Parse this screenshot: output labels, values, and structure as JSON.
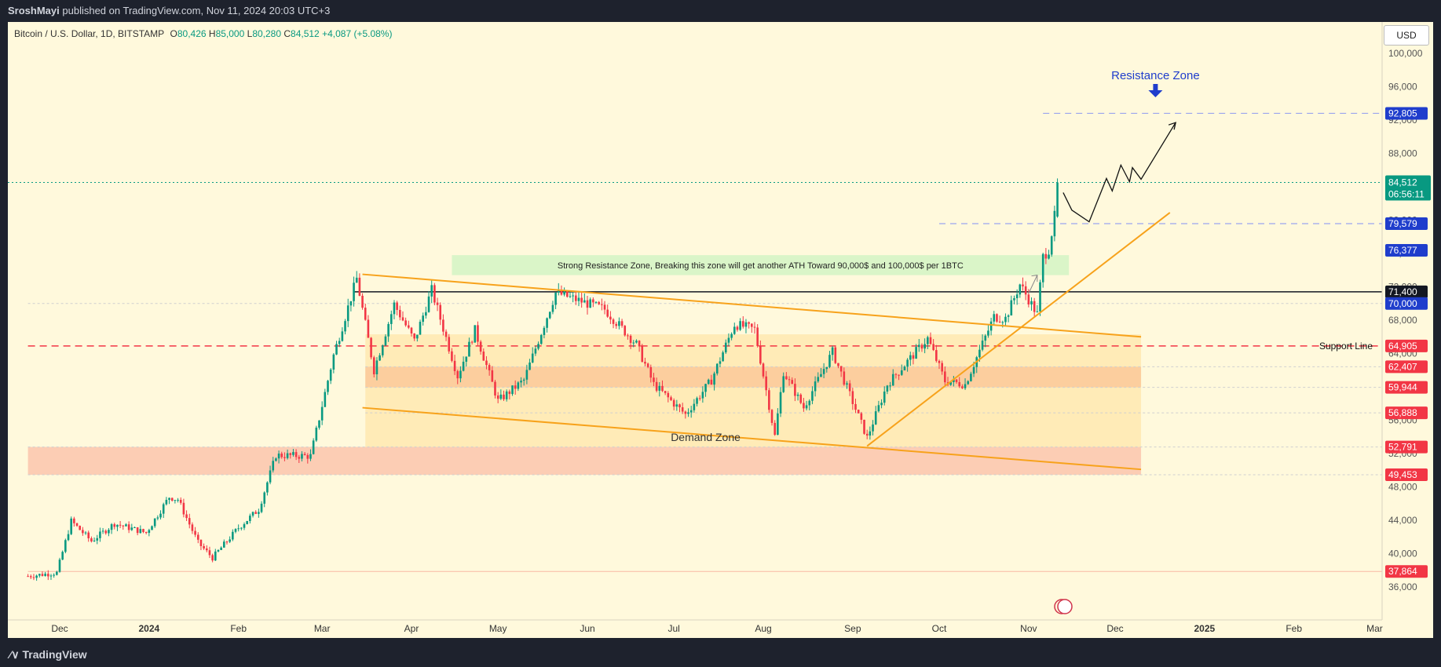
{
  "header": {
    "author": "SroshMayi",
    "published": "published on TradingView.com, Nov 11, 2024 20:03 UTC+3"
  },
  "legend": {
    "pair": "Bitcoin / U.S. Dollar, 1D, BITSTAMP",
    "open_label": "O",
    "open": "80,426",
    "high_label": "H",
    "high": "85,000",
    "low_label": "L",
    "low": "80,280",
    "close_label": "C",
    "close": "84,512",
    "change": "+4,087 (+5.08%)"
  },
  "currency_button": "USD",
  "footer": {
    "brand": "TradingView"
  },
  "colors": {
    "background": "#fff9dc",
    "up": "#089981",
    "down": "#f23645",
    "channel": "#f7a21b",
    "resistance_box": "#d4f5c4",
    "blue": "#1f3dcc"
  },
  "chart_data": {
    "type": "candlestick",
    "symbol": "Bitcoin / U.S. Dollar",
    "timeframe": "1D",
    "exchange": "BITSTAMP",
    "ylim": [
      34000,
      104000
    ],
    "y_ticks": [
      36000,
      40000,
      44000,
      48000,
      52000,
      56000,
      60000,
      64000,
      68000,
      72000,
      76000,
      80000,
      84000,
      88000,
      92000,
      96000,
      100000
    ],
    "y_tick_labels": [
      "36,000",
      "40,000",
      "44,000",
      "48,000",
      "52,000",
      "56,000",
      "60,000",
      "64,000",
      "68,000",
      "72,000",
      "76,000",
      "80,000",
      "84,000",
      "88,000",
      "92,000",
      "96,000",
      "100,000"
    ],
    "x_range": [
      "2023-11-20",
      "2025-03-10"
    ],
    "x_ticks": [
      {
        "date": "2023-12-01",
        "label": "Dec"
      },
      {
        "date": "2024-01-01",
        "label": "2024"
      },
      {
        "date": "2024-02-01",
        "label": "Feb"
      },
      {
        "date": "2024-03-01",
        "label": "Mar"
      },
      {
        "date": "2024-04-01",
        "label": "Apr"
      },
      {
        "date": "2024-05-01",
        "label": "May"
      },
      {
        "date": "2024-06-01",
        "label": "Jun"
      },
      {
        "date": "2024-07-01",
        "label": "Jul"
      },
      {
        "date": "2024-08-01",
        "label": "Aug"
      },
      {
        "date": "2024-09-01",
        "label": "Sep"
      },
      {
        "date": "2024-10-01",
        "label": "Oct"
      },
      {
        "date": "2024-11-01",
        "label": "Nov"
      },
      {
        "date": "2024-12-01",
        "label": "Dec"
      },
      {
        "date": "2025-01-01",
        "label": "2025"
      },
      {
        "date": "2025-02-01",
        "label": "Feb"
      },
      {
        "date": "2025-03-01",
        "label": "Mar"
      }
    ],
    "price_path": [
      [
        "2023-11-20",
        37300
      ],
      [
        "2023-11-30",
        37700
      ],
      [
        "2023-12-05",
        43900
      ],
      [
        "2023-12-12",
        41500
      ],
      [
        "2023-12-20",
        43600
      ],
      [
        "2023-12-31",
        42500
      ],
      [
        "2024-01-08",
        46800
      ],
      [
        "2024-01-11",
        46500
      ],
      [
        "2024-01-18",
        41300
      ],
      [
        "2024-01-23",
        39500
      ],
      [
        "2024-02-01",
        43100
      ],
      [
        "2024-02-08",
        45300
      ],
      [
        "2024-02-14",
        51800
      ],
      [
        "2024-02-26",
        51700
      ],
      [
        "2024-03-05",
        63800
      ],
      [
        "2024-03-13",
        73000
      ],
      [
        "2024-03-19",
        62000
      ],
      [
        "2024-03-26",
        69900
      ],
      [
        "2024-04-02",
        65500
      ],
      [
        "2024-04-08",
        71600
      ],
      [
        "2024-04-17",
        61300
      ],
      [
        "2024-04-23",
        66800
      ],
      [
        "2024-05-01",
        58300
      ],
      [
        "2024-05-10",
        60800
      ],
      [
        "2024-05-21",
        71300
      ],
      [
        "2024-06-07",
        69300
      ],
      [
        "2024-06-18",
        65100
      ],
      [
        "2024-06-24",
        60300
      ],
      [
        "2024-07-05",
        56700
      ],
      [
        "2024-07-14",
        60800
      ],
      [
        "2024-07-22",
        67500
      ],
      [
        "2024-07-29",
        66900
      ],
      [
        "2024-08-05",
        54100
      ],
      [
        "2024-08-08",
        61800
      ],
      [
        "2024-08-15",
        57500
      ],
      [
        "2024-08-25",
        64200
      ],
      [
        "2024-09-06",
        53900
      ],
      [
        "2024-09-13",
        60300
      ],
      [
        "2024-09-27",
        65800
      ],
      [
        "2024-10-03",
        60700
      ],
      [
        "2024-10-10",
        60300
      ],
      [
        "2024-10-20",
        68400
      ],
      [
        "2024-10-24",
        68200
      ],
      [
        "2024-10-29",
        72300
      ],
      [
        "2024-11-04",
        68700
      ],
      [
        "2024-11-06",
        75600
      ],
      [
        "2024-11-08",
        76500
      ],
      [
        "2024-11-10",
        80400
      ],
      [
        "2024-11-11",
        84512
      ]
    ],
    "current": {
      "price": 84512,
      "label": "84,512",
      "countdown": "06:56:11"
    },
    "price_levels": [
      {
        "price": 92805,
        "label": "92,805",
        "color": "#1f3dcc",
        "style": "dashed",
        "line": "#9aa4ee",
        "from": "2024-11-06"
      },
      {
        "price": 79579,
        "label": "79,579",
        "color": "#1f3dcc",
        "style": "dashed",
        "line": "#9aa4ee",
        "from": "2024-10-01"
      },
      {
        "price": 76377,
        "label": "76,377",
        "color": "#1f3dcc",
        "style": "none"
      },
      {
        "price": 71400,
        "label": "71,400",
        "color": "#131722",
        "style": "solid",
        "line": "#131722",
        "from": "2024-03-12"
      },
      {
        "price": 70000,
        "label": "70,000",
        "color": "#1f3dcc",
        "style": "dotted",
        "line": "#cfcfcf",
        "from": "2023-11-20"
      },
      {
        "price": 64905,
        "label": "64,905",
        "color": "#f23645",
        "style": "dashed-red",
        "line": "#f23645",
        "from": "2023-11-20"
      },
      {
        "price": 62407,
        "label": "62,407",
        "color": "#f23645",
        "style": "dotted",
        "line": "#cfcfcf",
        "from": "2024-03-16"
      },
      {
        "price": 59944,
        "label": "59,944",
        "color": "#f23645",
        "style": "dotted",
        "line": "#cfcfcf",
        "from": "2024-03-16"
      },
      {
        "price": 56888,
        "label": "56,888",
        "color": "#f23645",
        "style": "dotted",
        "line": "#cfcfcf",
        "from": "2024-03-16"
      },
      {
        "price": 52791,
        "label": "52,791",
        "color": "#f23645",
        "style": "dotted",
        "line": "#cfcfcf",
        "from": "2023-11-20"
      },
      {
        "price": 49453,
        "label": "49,453",
        "color": "#f23645",
        "style": "dotted",
        "line": "#cfcfcf",
        "from": "2023-11-20"
      },
      {
        "price": 37864,
        "label": "37,864",
        "color": "#f23645",
        "style": "solid",
        "line": "#f8b9a3",
        "from": "2023-11-20"
      }
    ],
    "zones": [
      {
        "name": "resistance-box",
        "from": "2024-04-15",
        "to": "2024-11-15",
        "low": 73400,
        "high": 75800,
        "color": "#d4f5c4"
      },
      {
        "name": "channel-fill",
        "from": "2024-03-16",
        "to": "2024-12-10",
        "low": 52800,
        "high": 66300,
        "color": "#ffe9b0"
      },
      {
        "name": "band-upper",
        "from": "2024-03-16",
        "to": "2024-12-10",
        "low": 59944,
        "high": 62407,
        "color": "#fcc99a"
      },
      {
        "name": "band-demand",
        "from": "2023-11-20",
        "to": "2024-12-10",
        "low": 49453,
        "high": 52791,
        "color": "#fcc6ad"
      }
    ],
    "trend_lines": [
      {
        "name": "channel-top",
        "from": [
          "2024-03-15",
          73500
        ],
        "to": [
          "2024-12-10",
          66000
        ]
      },
      {
        "name": "channel-bottom",
        "from": [
          "2024-03-15",
          57500
        ],
        "to": [
          "2024-12-10",
          50100
        ]
      },
      {
        "name": "rising-support",
        "from": [
          "2024-09-06",
          52900
        ],
        "to": [
          "2024-12-20",
          80900
        ]
      }
    ],
    "projection_path": [
      [
        "2024-11-13",
        83300
      ],
      [
        "2024-11-16",
        81200
      ],
      [
        "2024-11-22",
        79800
      ],
      [
        "2024-11-28",
        85000
      ],
      [
        "2024-11-30",
        83500
      ],
      [
        "2024-12-03",
        86600
      ],
      [
        "2024-12-06",
        84600
      ],
      [
        "2024-12-07",
        86300
      ],
      [
        "2024-12-10",
        84900
      ],
      [
        "2024-12-22",
        91700
      ]
    ],
    "annotations": [
      {
        "text": "Resistance Zone",
        "type": "title-arrow",
        "date": "2024-12-15",
        "price": 96900,
        "color": "#1f3dcc"
      },
      {
        "text": "Strong Resistance Zone, Breaking this zone will get another ATH Toward 90,000$ and  100,000$ per 1BTC",
        "type": "box-label"
      },
      {
        "text": "Demand Zone",
        "type": "label",
        "date": "2024-07-12",
        "price": 53500
      },
      {
        "text": "Support Line",
        "type": "label",
        "price": 64905
      }
    ]
  }
}
